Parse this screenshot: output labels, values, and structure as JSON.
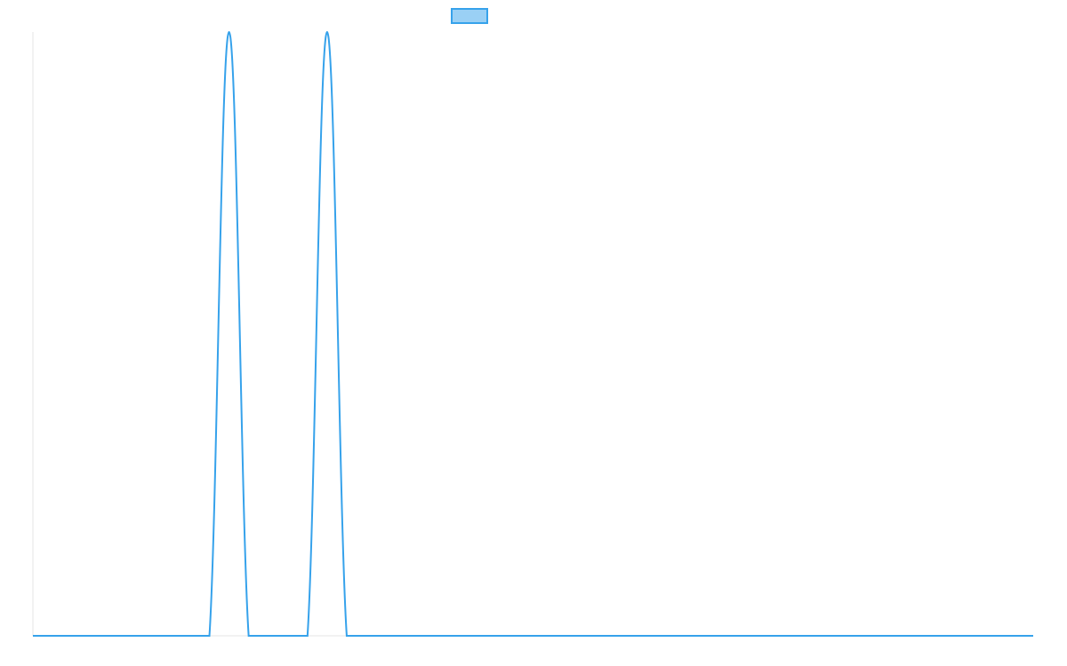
{
  "chart_data": {
    "type": "line",
    "categories": [
      null,
      null,
      null,
      null,
      null,
      null,
      null,
      null,
      null,
      null,
      null,
      null,
      null,
      null,
      null,
      null,
      null,
      null,
      null,
      null,
      null,
      null,
      null,
      null,
      null,
      null,
      null,
      null,
      null,
      null,
      null,
      null,
      null,
      null,
      null,
      null,
      null,
      null,
      null,
      null,
      null,
      null,
      null,
      null,
      null,
      null,
      null,
      null,
      null,
      null,
      null,
      null
    ],
    "series": [
      {
        "color": "#36a2eb",
        "values": [
          0,
          0,
          0,
          0,
          0,
          0,
          0,
          0,
          0,
          0,
          1,
          0,
          0,
          0,
          0,
          1,
          0,
          0,
          0,
          0,
          0,
          0,
          0,
          0,
          0,
          0,
          0,
          0,
          0,
          0,
          0,
          0,
          0,
          0,
          0,
          0,
          0,
          0,
          0,
          0,
          0,
          0,
          0,
          0,
          0,
          0,
          0,
          0,
          0,
          0,
          0,
          0
        ]
      }
    ],
    "ylim": [
      0,
      1
    ],
    "legend": "top"
  }
}
